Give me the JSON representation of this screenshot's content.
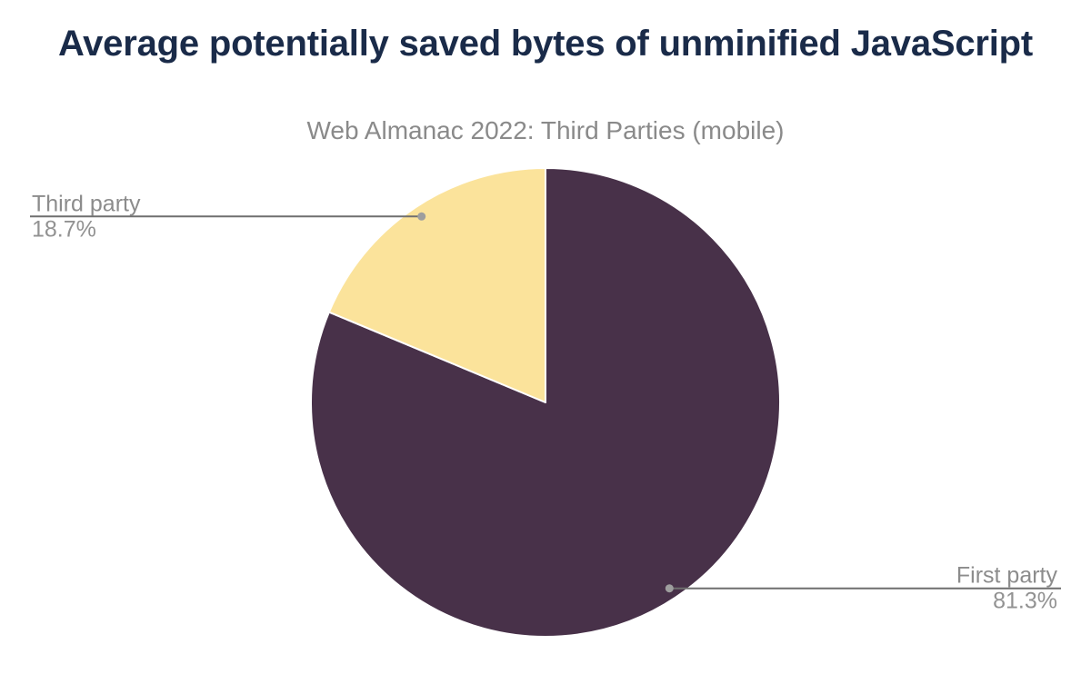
{
  "header": {
    "title": "Average potentially saved bytes of unminified JavaScript",
    "subtitle": "Web Almanac 2022: Third Parties (mobile)"
  },
  "chart_data": {
    "type": "pie",
    "title": "Average potentially saved bytes of unminified JavaScript",
    "subtitle": "Web Almanac 2022: Third Parties (mobile)",
    "legend_position": "none",
    "start_angle_deg": 0,
    "direction": "clockwise",
    "slices": [
      {
        "label": "First party",
        "value": 81.3,
        "pct_label": "81.3%",
        "color": "#483149",
        "label_side": "right"
      },
      {
        "label": "Third party",
        "value": 18.7,
        "pct_label": "18.7%",
        "color": "#fbe39b",
        "label_side": "left"
      }
    ],
    "colors": {
      "title_text": "#1a2b49",
      "subtitle_text": "#8a8a8a",
      "label_text": "#8c8c8c",
      "leader_line": "#6f6f6f",
      "leader_dot": "#9e9e9e",
      "slice_border": "#ffffff",
      "background": "#ffffff"
    }
  }
}
